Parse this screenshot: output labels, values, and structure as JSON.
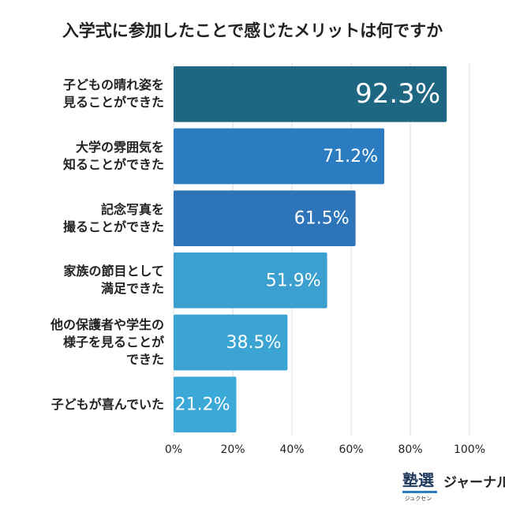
{
  "chart_data": {
    "type": "bar",
    "orientation": "horizontal",
    "title": "入学式に参加したことで感じたメリットは何ですか",
    "categories": [
      "子どもの晴れ姿を\n見ることができた",
      "大学の雰囲気を\n知ることができた",
      "記念写真を\n撮ることができた",
      "家族の節目として\n満足できた",
      "他の保護者や学生の\n様子を見ることが\nできた",
      "子どもが喜んでいた"
    ],
    "values": [
      92.3,
      71.2,
      61.5,
      51.9,
      38.5,
      21.2
    ],
    "value_labels": [
      "92.3%",
      "71.2%",
      "61.5%",
      "51.9%",
      "38.5%",
      "21.2%"
    ],
    "colors": [
      "#1d6783",
      "#2b7cc0",
      "#2e74b8",
      "#3ba0cf",
      "#3ba4d3",
      "#3aa9d8"
    ],
    "xlim": [
      0,
      100
    ],
    "xticks": [
      {
        "value": 0,
        "label": "0%"
      },
      {
        "value": 20,
        "label": "20%"
      },
      {
        "value": 40,
        "label": "40%"
      },
      {
        "value": 60,
        "label": "60%"
      },
      {
        "value": 80,
        "label": "80%"
      },
      {
        "value": 100,
        "label": "100%"
      }
    ],
    "grid": true
  },
  "logo": {
    "mark": "塾選",
    "reading": "ジュクセン",
    "name": "ジャーナル"
  }
}
